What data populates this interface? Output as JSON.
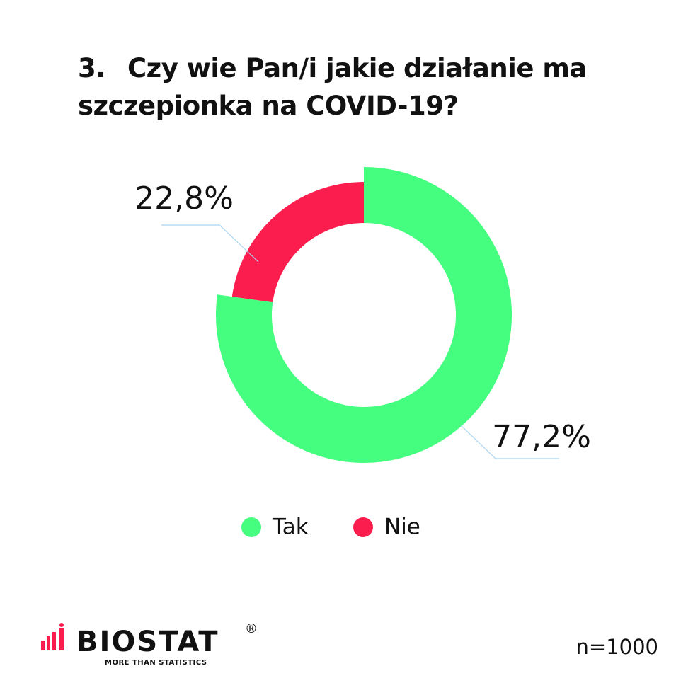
{
  "chart_data": {
    "type": "donut",
    "title_number": "3.",
    "title": "Czy wie Pan/i jakie działanie ma szczepionka na COVID-19?",
    "categories": [
      "Tak",
      "Nie"
    ],
    "values": [
      77.2,
      22.8
    ],
    "value_labels": [
      "77,2%",
      "22,8%"
    ],
    "colors": [
      "#45fd7e",
      "#fb1d4e"
    ],
    "note": "n=1000"
  },
  "logo": {
    "name": "BIOSTAT",
    "mark": "®",
    "tagline": "MORE THAN STATISTICS"
  }
}
